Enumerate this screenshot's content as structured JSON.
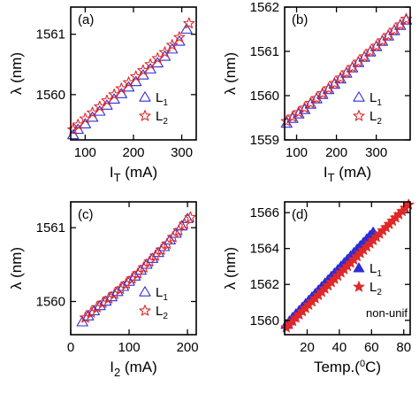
{
  "colors": {
    "L1": "#2d2dd6",
    "L2": "#e02828",
    "axis": "#000000"
  },
  "chart_data": [
    {
      "type": "scatter",
      "panel": "(a)",
      "xlabel": "I",
      "xlabel_sub": "T",
      "xlabel_unit": " (mA)",
      "ylabel": "λ (nm)",
      "xlim": [
        70,
        330
      ],
      "ylim": [
        1559.25,
        1561.45
      ],
      "xticks": [
        100,
        200,
        300
      ],
      "yticks": [
        1560,
        1561
      ],
      "legend": {
        "position": "lower-right",
        "filled": false
      },
      "series": [
        {
          "name": "L",
          "name_sub": "1",
          "marker": "triangle",
          "color": "#2d2dd6",
          "x": [
            75,
            85,
            100,
            115,
            130,
            145,
            160,
            175,
            190,
            205,
            220,
            235,
            250,
            265,
            280,
            295,
            310
          ],
          "y": [
            1559.33,
            1559.42,
            1559.51,
            1559.62,
            1559.72,
            1559.82,
            1559.92,
            1560.01,
            1560.12,
            1560.21,
            1560.32,
            1560.42,
            1560.52,
            1560.63,
            1560.75,
            1560.88,
            1561.08
          ]
        },
        {
          "name": "L",
          "name_sub": "2",
          "marker": "star",
          "color": "#e02828",
          "x": [
            75,
            85,
            100,
            115,
            130,
            145,
            160,
            175,
            190,
            205,
            220,
            235,
            250,
            265,
            280,
            295,
            315
          ],
          "y": [
            1559.42,
            1559.5,
            1559.6,
            1559.7,
            1559.8,
            1559.9,
            1560.0,
            1560.1,
            1560.2,
            1560.3,
            1560.4,
            1560.5,
            1560.6,
            1560.7,
            1560.82,
            1560.95,
            1561.18
          ]
        }
      ]
    },
    {
      "type": "scatter",
      "panel": "(b)",
      "xlabel": "I",
      "xlabel_sub": "T",
      "xlabel_unit": " (mA)",
      "ylabel": "λ (nm)",
      "xlim": [
        70,
        385
      ],
      "ylim": [
        1559,
        1562
      ],
      "xticks": [
        100,
        200,
        300
      ],
      "yticks": [
        1559,
        1560,
        1561,
        1562
      ],
      "legend": {
        "position": "lower-right",
        "filled": false
      },
      "series": [
        {
          "name": "L",
          "name_sub": "1",
          "marker": "triangle",
          "color": "#2d2dd6",
          "x": [
            75,
            90,
            105,
            120,
            135,
            150,
            165,
            180,
            195,
            210,
            225,
            240,
            255,
            270,
            285,
            300,
            315,
            330,
            345,
            360,
            375
          ],
          "y": [
            1559.37,
            1559.48,
            1559.58,
            1559.68,
            1559.8,
            1559.92,
            1560.02,
            1560.13,
            1560.25,
            1560.37,
            1560.5,
            1560.62,
            1560.74,
            1560.86,
            1560.98,
            1561.1,
            1561.22,
            1561.34,
            1561.46,
            1561.58,
            1561.7
          ]
        },
        {
          "name": "L",
          "name_sub": "2",
          "marker": "star",
          "color": "#e02828",
          "x": [
            75,
            90,
            105,
            120,
            135,
            150,
            165,
            180,
            195,
            210,
            225,
            240,
            255,
            270,
            285,
            300,
            315,
            330,
            345,
            360,
            375
          ],
          "y": [
            1559.42,
            1559.52,
            1559.62,
            1559.72,
            1559.83,
            1559.94,
            1560.05,
            1560.16,
            1560.28,
            1560.4,
            1560.52,
            1560.64,
            1560.76,
            1560.88,
            1561.0,
            1561.12,
            1561.24,
            1561.36,
            1561.48,
            1561.6,
            1561.73
          ]
        }
      ]
    },
    {
      "type": "scatter",
      "panel": "(c)",
      "xlabel": "I",
      "xlabel_sub": "2",
      "xlabel_unit": " (mA)",
      "ylabel": "λ (nm)",
      "xlim": [
        0,
        215
      ],
      "ylim": [
        1559.55,
        1561.35
      ],
      "xticks": [
        0,
        100,
        200
      ],
      "yticks": [
        1560,
        1561
      ],
      "legend": {
        "position": "lower-right",
        "filled": false
      },
      "series": [
        {
          "name": "L",
          "name_sub": "1",
          "marker": "triangle",
          "color": "#2d2dd6",
          "x": [
            20,
            30,
            40,
            50,
            60,
            70,
            80,
            90,
            100,
            110,
            120,
            130,
            140,
            150,
            160,
            170,
            180,
            190,
            200
          ],
          "y": [
            1559.72,
            1559.8,
            1559.87,
            1559.94,
            1560.0,
            1560.06,
            1560.13,
            1560.2,
            1560.27,
            1560.34,
            1560.42,
            1560.5,
            1560.58,
            1560.66,
            1560.74,
            1560.83,
            1560.92,
            1561.02,
            1561.12
          ]
        },
        {
          "name": "L",
          "name_sub": "2",
          "marker": "star",
          "color": "#e02828",
          "x": [
            25,
            35,
            45,
            55,
            65,
            75,
            85,
            95,
            105,
            115,
            125,
            135,
            145,
            155,
            165,
            175,
            185,
            195,
            205
          ],
          "y": [
            1559.78,
            1559.85,
            1559.92,
            1559.98,
            1560.04,
            1560.1,
            1560.17,
            1560.24,
            1560.31,
            1560.38,
            1560.46,
            1560.54,
            1560.62,
            1560.7,
            1560.78,
            1560.87,
            1560.96,
            1561.05,
            1561.14
          ]
        }
      ]
    },
    {
      "type": "scatter",
      "panel": "(d)",
      "xlabel": "Temp.(",
      "xlabel_sup": "0",
      "xlabel_unit": "C)",
      "ylabel": "λ (nm)",
      "xlim": [
        6,
        84
      ],
      "ylim": [
        1559.2,
        1566.6
      ],
      "xticks": [
        20,
        40,
        60,
        80
      ],
      "yticks": [
        1560,
        1562,
        1564,
        1566
      ],
      "legend": {
        "position": "lower-right",
        "filled": true
      },
      "annotation": "non-unif",
      "series": [
        {
          "name": "L",
          "name_sub": "1",
          "marker": "triangle-filled",
          "color": "#2d2dd6",
          "x": [
            7,
            9,
            11,
            13,
            15,
            17,
            19,
            21,
            23,
            25,
            27,
            29,
            31,
            33,
            35,
            37,
            39,
            41,
            43,
            45,
            47,
            49,
            51,
            53,
            55,
            57,
            59,
            61
          ],
          "y": [
            1559.75,
            1559.95,
            1560.15,
            1560.34,
            1560.53,
            1560.72,
            1560.91,
            1561.1,
            1561.29,
            1561.48,
            1561.67,
            1561.86,
            1562.05,
            1562.24,
            1562.43,
            1562.62,
            1562.81,
            1563.0,
            1563.19,
            1563.38,
            1563.57,
            1563.76,
            1563.95,
            1564.14,
            1564.33,
            1564.52,
            1564.71,
            1564.9
          ]
        },
        {
          "name": "L",
          "name_sub": "2",
          "marker": "star-filled",
          "color": "#e02828",
          "x": [
            7,
            9,
            11,
            13,
            15,
            17,
            19,
            21,
            23,
            25,
            27,
            29,
            31,
            33,
            35,
            37,
            39,
            41,
            43,
            45,
            47,
            49,
            51,
            53,
            55,
            57,
            59,
            61,
            63,
            65,
            67,
            69,
            71,
            73,
            75,
            77,
            79,
            81,
            83
          ],
          "y": [
            1559.6,
            1559.78,
            1559.96,
            1560.14,
            1560.32,
            1560.5,
            1560.68,
            1560.86,
            1561.04,
            1561.22,
            1561.4,
            1561.58,
            1561.76,
            1561.94,
            1562.12,
            1562.3,
            1562.48,
            1562.66,
            1562.84,
            1563.02,
            1563.2,
            1563.38,
            1563.56,
            1563.74,
            1563.92,
            1564.1,
            1564.28,
            1564.46,
            1564.64,
            1564.82,
            1565.0,
            1565.18,
            1565.36,
            1565.54,
            1565.72,
            1565.9,
            1566.08,
            1566.26,
            1566.44
          ]
        }
      ]
    }
  ]
}
